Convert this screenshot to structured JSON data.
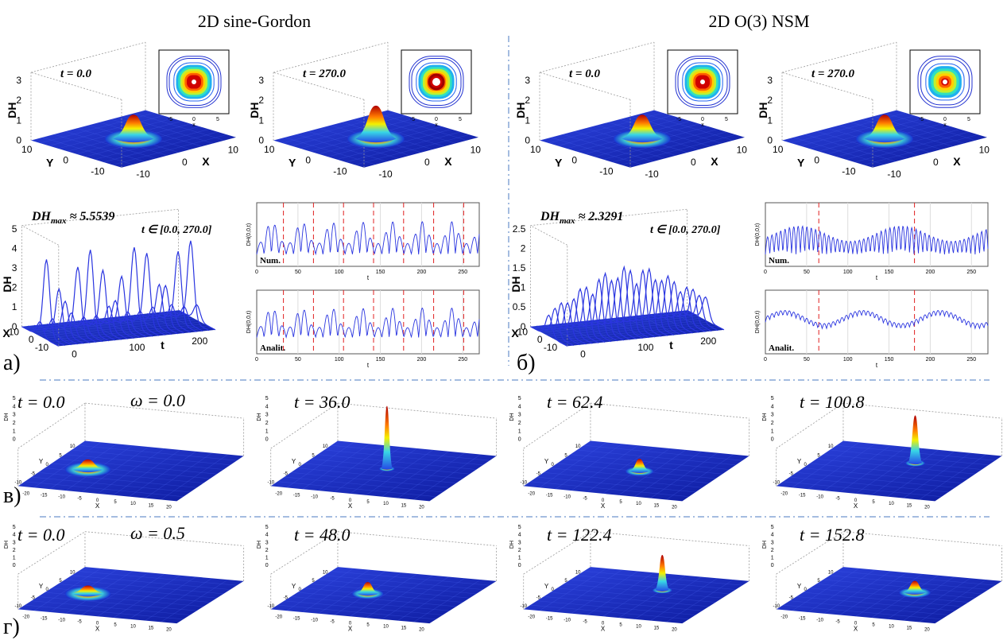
{
  "sections": [
    {
      "title": "2D sine-Gordon",
      "label": "а)",
      "snapshots": [
        "t = 0.0",
        "t = 270.0"
      ],
      "evolution": {
        "max_symbol": "DH",
        "max_sub": "max",
        "max_value": "≈ 5.5539",
        "range": "t ∈ [0.0, 270.0]",
        "zticks": [
          "0",
          "1",
          "2",
          "3",
          "4",
          "5"
        ]
      },
      "line_labels": [
        "Num.",
        "Analit."
      ]
    },
    {
      "title": "2D O(3) NSM",
      "label": "б)",
      "snapshots": [
        "t = 0.0",
        "t = 270.0"
      ],
      "evolution": {
        "max_symbol": "DH",
        "max_sub": "max",
        "max_value": "≈ 2.3291",
        "range": "t ∈ [0.0, 270.0]",
        "zticks": [
          "0",
          "0.5",
          "1",
          "1.5",
          "2",
          "2.5"
        ]
      },
      "line_labels": [
        "Num.",
        "Analit."
      ]
    }
  ],
  "surface_axes": {
    "z": "DH",
    "x": "X",
    "y": "Y",
    "zticks": [
      "0",
      "1",
      "2",
      "3"
    ],
    "xticks": [
      "-10",
      "0",
      "10"
    ],
    "yticks": [
      "10",
      "0",
      "-10"
    ],
    "inset_ticks": [
      "-5",
      "0",
      "5"
    ],
    "inset_x": "x"
  },
  "evolution_axes": {
    "z": "DH",
    "x": "X",
    "t": "t",
    "xticks": [
      "10",
      "0",
      "-10"
    ],
    "tticks": [
      "0",
      "100",
      "200"
    ]
  },
  "line_axes": {
    "y": "DH(0,0,t)",
    "x": "t",
    "xticks": [
      "0",
      "50",
      "100",
      "150",
      "200",
      "250"
    ]
  },
  "rows": [
    {
      "label": "в)",
      "omega": "ω = 0.0",
      "snapshots": [
        "t = 0.0",
        "t = 36.0",
        "t = 62.4",
        "t = 100.8"
      ]
    },
    {
      "label": "г)",
      "omega": "ω = 0.5",
      "snapshots": [
        "t = 0.0",
        "t = 48.0",
        "t = 122.4",
        "t = 152.8"
      ]
    }
  ],
  "row_axes": {
    "z": "DH",
    "x": "X",
    "y": "Y",
    "zticks": [
      "0",
      "1",
      "2",
      "3",
      "4",
      "5"
    ],
    "xticks": [
      "-20",
      "-15",
      "-10",
      "-5",
      "0",
      "5",
      "10",
      "15",
      "20"
    ],
    "yticks": [
      "-10",
      "-5",
      "0",
      "5",
      "10"
    ]
  }
}
